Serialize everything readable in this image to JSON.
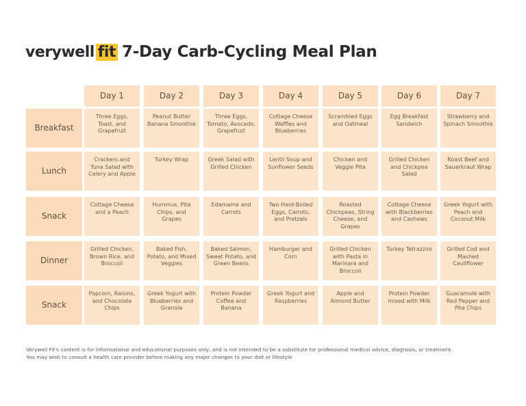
{
  "header": {
    "brand": "verywell",
    "brand_tag": "fit",
    "title": "7-Day Carb-Cycling Meal Plan"
  },
  "table": {
    "columns": [
      "Day 1",
      "Day 2",
      "Day 3",
      "Day 4",
      "Day 5",
      "Day 6",
      "Day 7"
    ],
    "rows": [
      {
        "label": "Breakfast",
        "cells": [
          "Three Eggs, Toast, and Grapefruit",
          "Peanut Butter Banana Smoothie",
          "Three Eggs, Tomato, Avocado, Grapefruit",
          "Cottage Cheese Waffles and Blueberries",
          "Scrambled Eggs and Oatmeal",
          "Egg Breakfast Sandwich",
          "Strawberry and Spinach Smoothie"
        ]
      },
      {
        "label": "Lunch",
        "cells": [
          "Crackers and Tuna Salad with Celery and Apple",
          "Turkey Wrap",
          "Greek Salad with Grilled Chicken",
          "Lentil Soup and Sunflower Seeds",
          "Chicken and Veggie Pita",
          "Grilled Chicken and Chickpea Salad",
          "Roast Beef and Sauerkraut Wrap"
        ]
      },
      {
        "label": "Snack",
        "cells": [
          "Cottage Cheese and a Peach",
          "Hummus, Pita Chips, and Grapes",
          "Edamame and Carrots",
          "Two Hard-Boiled Eggs, Carrots, and Pretzels",
          "Roasted Chickpeas, String Cheese, and Grapes",
          "Cottage Cheese with Blackberries and Cashews",
          "Greek Yogurt with Peach and Coconut Milk"
        ]
      },
      {
        "label": "Dinner",
        "cells": [
          "Grilled Chicken, Brown Rice, and Broccoli",
          "Baked Fish, Potato, and Mixed Veggies",
          "Baked Salmon, Sweet Potato, and Green Beans",
          "Hamburger and Corn",
          "Grilled Chicken with Pasta in Marinara and Broccoli",
          "Turkey Tetrazzini",
          "Grilled Cod and Mashed Cauliflower"
        ]
      },
      {
        "label": "Snack",
        "cells": [
          "Popcorn, Raisins, and Chocolate Chips",
          "Greek Yogurt with Blueberries and Granola",
          "Protein Powder Coffee and Banana",
          "Greek Yogurt and Raspberries",
          "Apple and Almond Butter",
          "Protein Powder mixed with Milk",
          "Guacamole with Red Pepper and Pita Chips"
        ]
      }
    ]
  },
  "footer": [
    "Verywell Fit's content is for informational and educational purposes only, and is not intended to be a substitute for professional medical advice, diagnosis, or treatment.",
    "You may wish to consult a health care provider before making any major changes to your diet or lifestyle"
  ]
}
